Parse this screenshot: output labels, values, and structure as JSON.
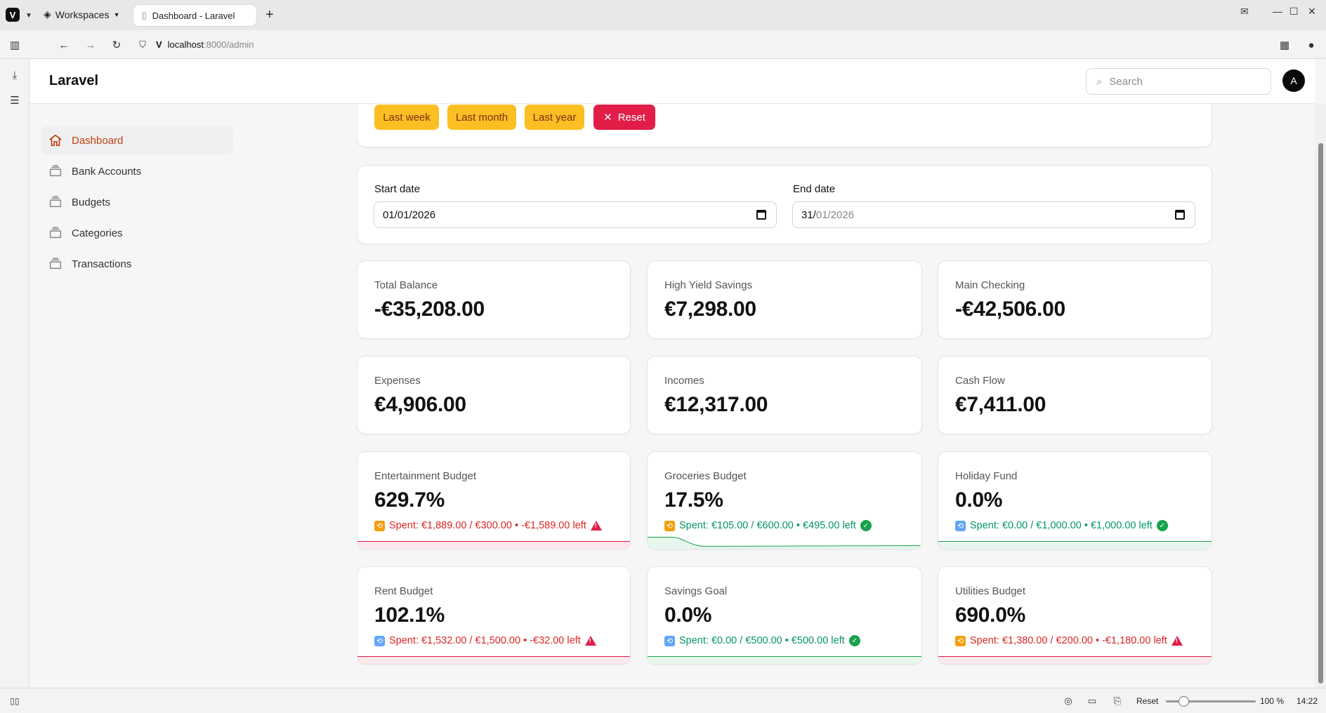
{
  "browser": {
    "workspaces_label": "Workspaces",
    "tab_title": "Dashboard - Laravel",
    "url_host": "localhost",
    "url_path": ":8000/admin",
    "status_reset": "Reset",
    "zoom": "100 %",
    "clock": "14:22"
  },
  "app": {
    "brand": "Laravel",
    "search_placeholder": "Search",
    "avatar_initial": "A"
  },
  "nav": {
    "items": [
      {
        "label": "Dashboard",
        "icon": "home-icon"
      },
      {
        "label": "Bank Accounts",
        "icon": "stack-icon"
      },
      {
        "label": "Budgets",
        "icon": "stack-icon"
      },
      {
        "label": "Categories",
        "icon": "stack-icon"
      },
      {
        "label": "Transactions",
        "icon": "stack-icon"
      }
    ]
  },
  "filters": {
    "last_week": "Last week",
    "last_month": "Last month",
    "last_year": "Last year",
    "reset": "Reset"
  },
  "dates": {
    "start_label": "Start date",
    "start_value": "01/01/2026",
    "end_label": "End date",
    "end_value_day": "31/",
    "end_value_rest": "01/2026"
  },
  "stats": [
    {
      "label": "Total Balance",
      "value": "-€35,208.00"
    },
    {
      "label": "High Yield Savings",
      "value": "€7,298.00"
    },
    {
      "label": "Main Checking",
      "value": "-€42,506.00"
    },
    {
      "label": "Expenses",
      "value": "€4,906.00"
    },
    {
      "label": "Incomes",
      "value": "€12,317.00"
    },
    {
      "label": "Cash Flow",
      "value": "€7,411.00"
    }
  ],
  "budgets": [
    {
      "label": "Entertainment Budget",
      "value": "629.7%",
      "desc": "Spent: €1,889.00 / €300.00 • -€1,589.00 left",
      "status": "over",
      "progress": 6.297
    },
    {
      "label": "Groceries Budget",
      "value": "17.5%",
      "desc": "Spent: €105.00 / €600.00 • €495.00 left",
      "status": "ok",
      "progress": 0.175
    },
    {
      "label": "Holiday Fund",
      "value": "0.0%",
      "desc": "Spent: €0.00 / €1,000.00 • €1,000.00 left",
      "status": "ok",
      "progress": 0.0
    },
    {
      "label": "Rent Budget",
      "value": "102.1%",
      "desc": "Spent: €1,532.00 / €1,500.00 • -€32.00 left",
      "status": "over",
      "progress": 1.021
    },
    {
      "label": "Savings Goal",
      "value": "0.0%",
      "desc": "Spent: €0.00 / €500.00 • €500.00 left",
      "status": "ok",
      "progress": 0.0
    },
    {
      "label": "Utilities Budget",
      "value": "690.0%",
      "desc": "Spent: €1,380.00 / €200.00 • -€1,180.00 left",
      "status": "over",
      "progress": 6.9
    }
  ],
  "colors": {
    "accent": "#c2410c",
    "warning_button": "#fbbf24",
    "danger": "#e11d48",
    "success": "#16a34a",
    "over_text": "#dc2626",
    "ok_text": "#059669"
  }
}
